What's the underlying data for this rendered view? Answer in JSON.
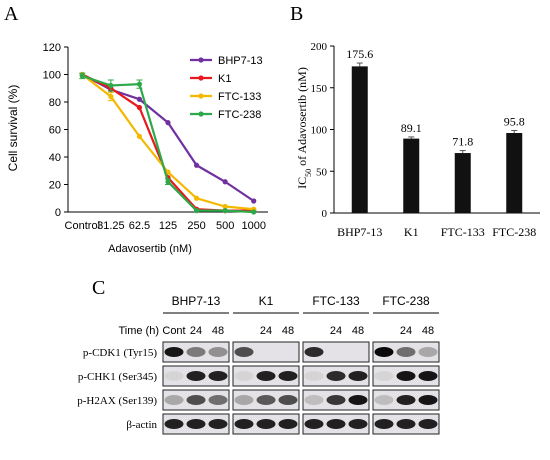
{
  "panel_labels": {
    "a": "A",
    "b": "B",
    "c": "C"
  },
  "chart_data": [
    {
      "type": "line",
      "panel": "A",
      "xlabel": "Adavosertib (nM)",
      "ylabel": "Cell survival (%)",
      "categories": [
        "Control",
        "31.25",
        "62.5",
        "125",
        "250",
        "500",
        "1000"
      ],
      "ylim": [
        0,
        120
      ],
      "yticks": [
        0,
        20,
        40,
        60,
        80,
        100,
        120
      ],
      "legend_position": "top-right",
      "series": [
        {
          "name": "BHP7-13",
          "color": "#7030a0",
          "values": [
            100,
            89,
            82,
            65,
            34,
            22,
            8
          ]
        },
        {
          "name": "K1",
          "color": "#e8191d",
          "values": [
            100,
            90,
            76,
            25,
            2,
            1,
            1
          ]
        },
        {
          "name": "FTC-133",
          "color": "#f5b800",
          "values": [
            100,
            84,
            55,
            29,
            10,
            4,
            2
          ]
        },
        {
          "name": "FTC-238",
          "color": "#2da84a",
          "values": [
            99,
            92,
            93,
            22,
            1,
            1,
            0
          ]
        }
      ],
      "error_bars": {
        "FTC-238": [
          2,
          4,
          3,
          2,
          0,
          0,
          0
        ],
        "FTC-133": [
          0,
          3,
          0,
          0,
          0,
          0,
          0
        ]
      }
    },
    {
      "type": "bar",
      "panel": "B",
      "ylabel": "IC50 of Adavosertib (nM)",
      "categories": [
        "BHP7-13",
        "K1",
        "FTC-133",
        "FTC-238"
      ],
      "values": [
        175.6,
        89.1,
        71.8,
        95.8
      ],
      "value_labels": [
        "175.6",
        "89.1",
        "71.8",
        "95.8"
      ],
      "errors": [
        4,
        2,
        3,
        3
      ],
      "ylim": [
        0,
        200
      ],
      "yticks": [
        0,
        50,
        100,
        150,
        200
      ],
      "bar_color": "#111111"
    }
  ],
  "blot": {
    "time_label": "Time (h)",
    "cell_lines": [
      "BHP7-13",
      "K1",
      "FTC-133",
      "FTC-238"
    ],
    "timepoints": [
      "Cont",
      "24",
      "48"
    ],
    "rows": [
      {
        "label": "p-CDK1 (Tyr15)",
        "intensity": [
          [
            0.95,
            0.5,
            0.4
          ],
          [
            0.7,
            0.0,
            0.0
          ],
          [
            0.85,
            0.0,
            0.0
          ],
          [
            1.0,
            0.55,
            0.3
          ]
        ]
      },
      {
        "label": "p-CHK1 (Ser345)",
        "intensity": [
          [
            0.1,
            0.9,
            0.9
          ],
          [
            0.1,
            0.9,
            0.9
          ],
          [
            0.1,
            0.85,
            0.9
          ],
          [
            0.1,
            0.95,
            0.95
          ]
        ]
      },
      {
        "label": "p-H2AX (Ser139)",
        "intensity": [
          [
            0.3,
            0.7,
            0.55
          ],
          [
            0.3,
            0.65,
            0.7
          ],
          [
            0.2,
            0.8,
            0.95
          ],
          [
            0.2,
            0.9,
            0.95
          ]
        ]
      },
      {
        "label": "β-actin",
        "intensity": [
          [
            0.9,
            0.9,
            0.9
          ],
          [
            0.9,
            0.9,
            0.9
          ],
          [
            0.9,
            0.9,
            0.9
          ],
          [
            0.9,
            0.9,
            0.9
          ]
        ]
      }
    ]
  }
}
